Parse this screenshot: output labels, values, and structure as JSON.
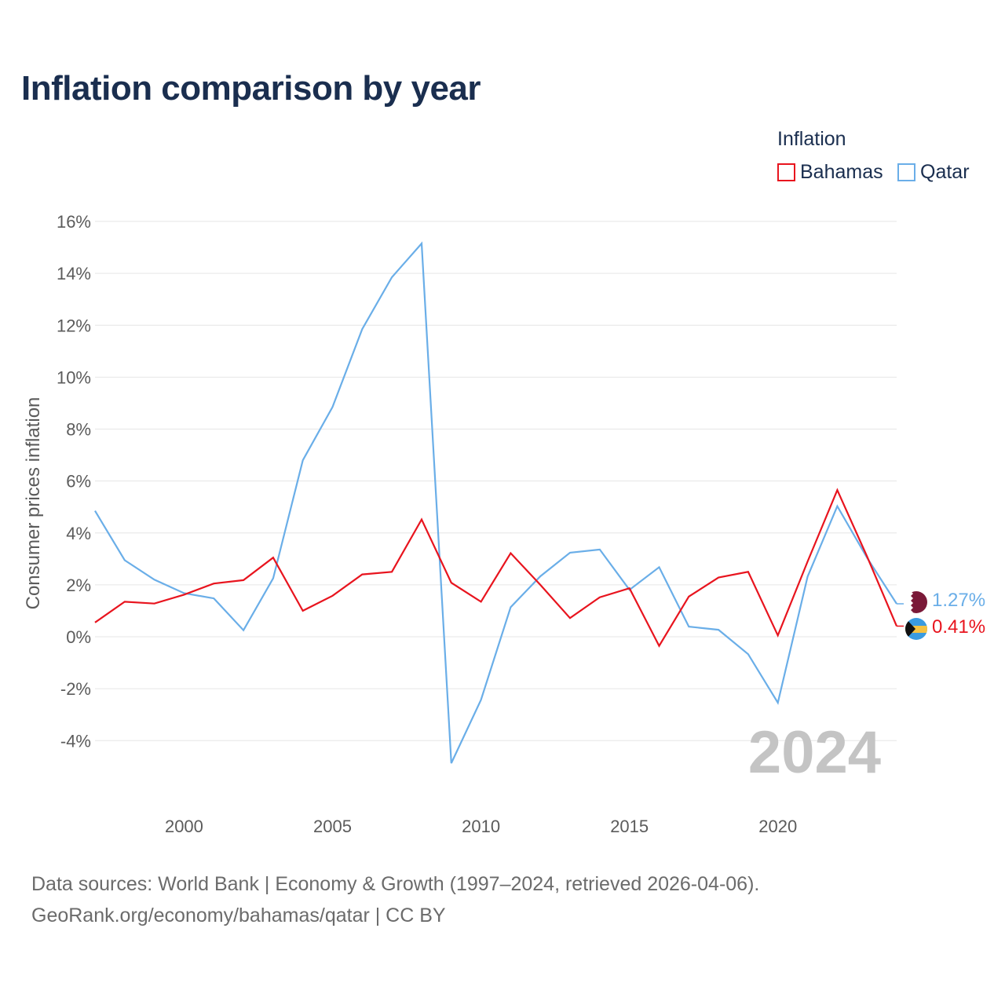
{
  "title": "Inflation comparison by year",
  "legend": {
    "title": "Inflation",
    "items": [
      {
        "label": "Bahamas",
        "color": "#e8141e"
      },
      {
        "label": "Qatar",
        "color": "#6aaee8"
      }
    ]
  },
  "chart_data": {
    "type": "line",
    "title": "Inflation comparison by year",
    "xlabel": "",
    "ylabel": "Consumer prices inflation",
    "xlim": [
      1997,
      2024
    ],
    "ylim": [
      -6,
      16
    ],
    "x_ticks": [
      2000,
      2005,
      2010,
      2015,
      2020
    ],
    "y_ticks": [
      16,
      14,
      12,
      10,
      8,
      6,
      4,
      2,
      0,
      -2,
      -4
    ],
    "y_tick_labels": [
      "16%",
      "14%",
      "12%",
      "10%",
      "8%",
      "6%",
      "4%",
      "2%",
      "0%",
      "-2%",
      "-4%"
    ],
    "grid": true,
    "x": [
      1997,
      1998,
      1999,
      2000,
      2001,
      2002,
      2003,
      2004,
      2005,
      2006,
      2007,
      2008,
      2009,
      2010,
      2011,
      2012,
      2013,
      2014,
      2015,
      2016,
      2017,
      2018,
      2019,
      2020,
      2021,
      2022,
      2023,
      2024
    ],
    "series": [
      {
        "name": "Bahamas",
        "color": "#e8141e",
        "end_label": "0.41%",
        "values": [
          0.55,
          1.35,
          1.28,
          1.62,
          2.05,
          2.18,
          3.05,
          1.0,
          1.58,
          2.4,
          2.5,
          4.52,
          2.08,
          1.35,
          3.22,
          2.0,
          0.72,
          1.52,
          1.87,
          -0.35,
          1.55,
          2.28,
          2.5,
          0.05,
          2.9,
          5.65,
          3.1,
          0.41
        ]
      },
      {
        "name": "Qatar",
        "color": "#6aaee8",
        "end_label": "1.27%",
        "values": [
          4.85,
          2.95,
          2.2,
          1.68,
          1.48,
          0.25,
          2.25,
          6.8,
          8.85,
          11.85,
          13.85,
          15.15,
          -4.87,
          -2.43,
          1.14,
          2.33,
          3.24,
          3.36,
          1.81,
          2.68,
          0.39,
          0.27,
          -0.67,
          -2.54,
          2.32,
          5.03,
          3.05,
          1.27
        ]
      }
    ],
    "annotation": "2024"
  },
  "source": {
    "line1": "Data sources: World Bank | Economy & Growth (1997–2024, retrieved 2026-04-06).",
    "line2": "GeoRank.org/economy/bahamas/qatar | CC BY"
  }
}
